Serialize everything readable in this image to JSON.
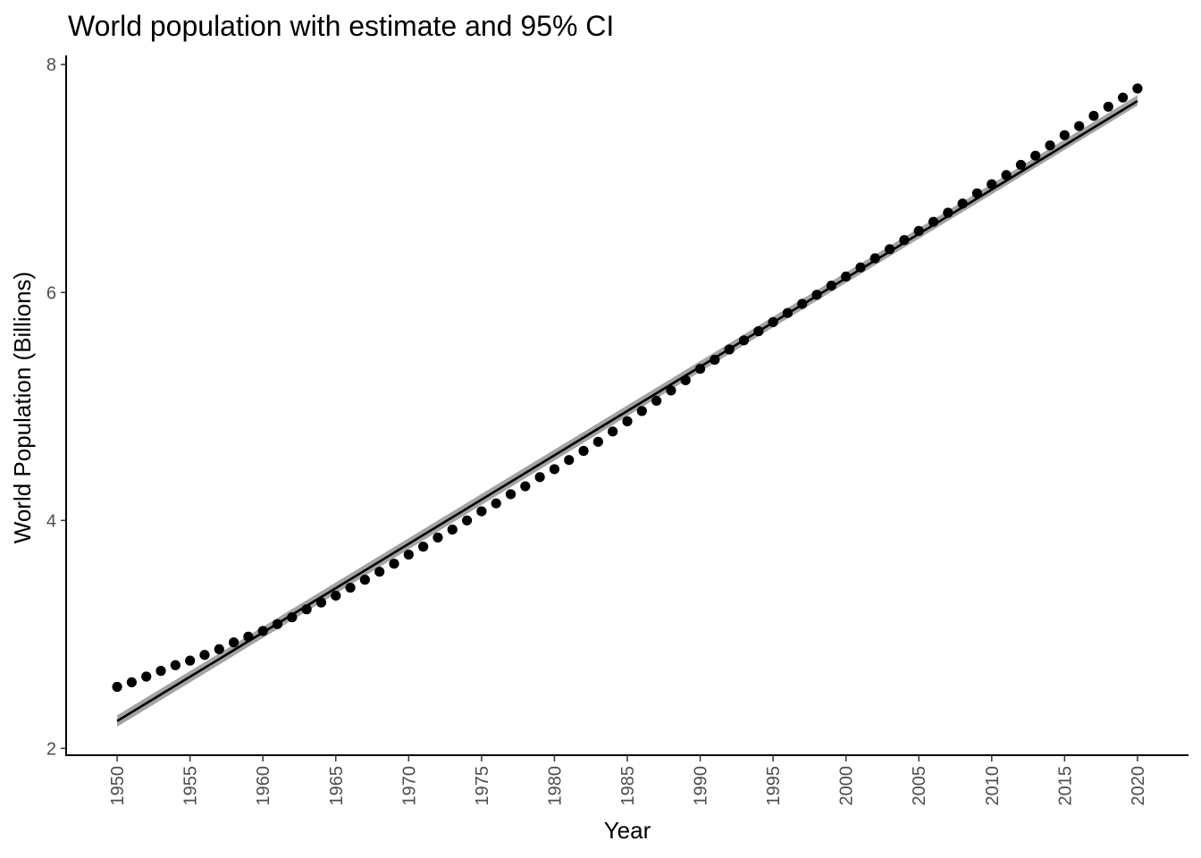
{
  "chart_data": {
    "type": "scatter",
    "title": "World population with estimate and 95% CI",
    "xlabel": "Year",
    "ylabel": "World Population (Billions)",
    "xlim": [
      1946.5,
      2023.5
    ],
    "ylim": [
      1.94,
      8.08
    ],
    "x_ticks": [
      1950,
      1955,
      1960,
      1965,
      1970,
      1975,
      1980,
      1985,
      1990,
      1995,
      2000,
      2005,
      2010,
      2015,
      2020
    ],
    "y_ticks": [
      2,
      4,
      6,
      8
    ],
    "grid": false,
    "legend": "none",
    "colors": {
      "points": "#000000",
      "fit_line": "#000000",
      "ci_band": "#999999"
    },
    "series": [
      {
        "kind": "points",
        "x": [
          1950,
          1951,
          1952,
          1953,
          1954,
          1955,
          1956,
          1957,
          1958,
          1959,
          1960,
          1961,
          1962,
          1963,
          1964,
          1965,
          1966,
          1967,
          1968,
          1969,
          1970,
          1971,
          1972,
          1973,
          1974,
          1975,
          1976,
          1977,
          1978,
          1979,
          1980,
          1981,
          1982,
          1983,
          1984,
          1985,
          1986,
          1987,
          1988,
          1989,
          1990,
          1991,
          1992,
          1993,
          1994,
          1995,
          1996,
          1997,
          1998,
          1999,
          2000,
          2001,
          2002,
          2003,
          2004,
          2005,
          2006,
          2007,
          2008,
          2009,
          2010,
          2011,
          2012,
          2013,
          2014,
          2015,
          2016,
          2017,
          2018,
          2019,
          2020
        ],
        "y": [
          2.54,
          2.58,
          2.63,
          2.68,
          2.73,
          2.77,
          2.82,
          2.87,
          2.93,
          2.98,
          3.03,
          3.09,
          3.15,
          3.22,
          3.28,
          3.34,
          3.41,
          3.48,
          3.55,
          3.62,
          3.7,
          3.77,
          3.85,
          3.92,
          4.0,
          4.08,
          4.15,
          4.23,
          4.3,
          4.38,
          4.45,
          4.53,
          4.61,
          4.69,
          4.78,
          4.87,
          4.96,
          5.05,
          5.14,
          5.23,
          5.33,
          5.41,
          5.5,
          5.58,
          5.66,
          5.74,
          5.82,
          5.9,
          5.98,
          6.06,
          6.14,
          6.22,
          6.3,
          6.38,
          6.46,
          6.54,
          6.62,
          6.7,
          6.78,
          6.87,
          6.95,
          7.03,
          7.12,
          7.2,
          7.29,
          7.38,
          7.46,
          7.55,
          7.63,
          7.71,
          7.79
        ]
      },
      {
        "kind": "linear_fit",
        "x": [
          1950,
          2020
        ],
        "y": [
          2.24,
          7.68
        ],
        "ci_lower": [
          2.19,
          7.64
        ],
        "ci_upper": [
          2.29,
          7.73
        ]
      }
    ]
  }
}
